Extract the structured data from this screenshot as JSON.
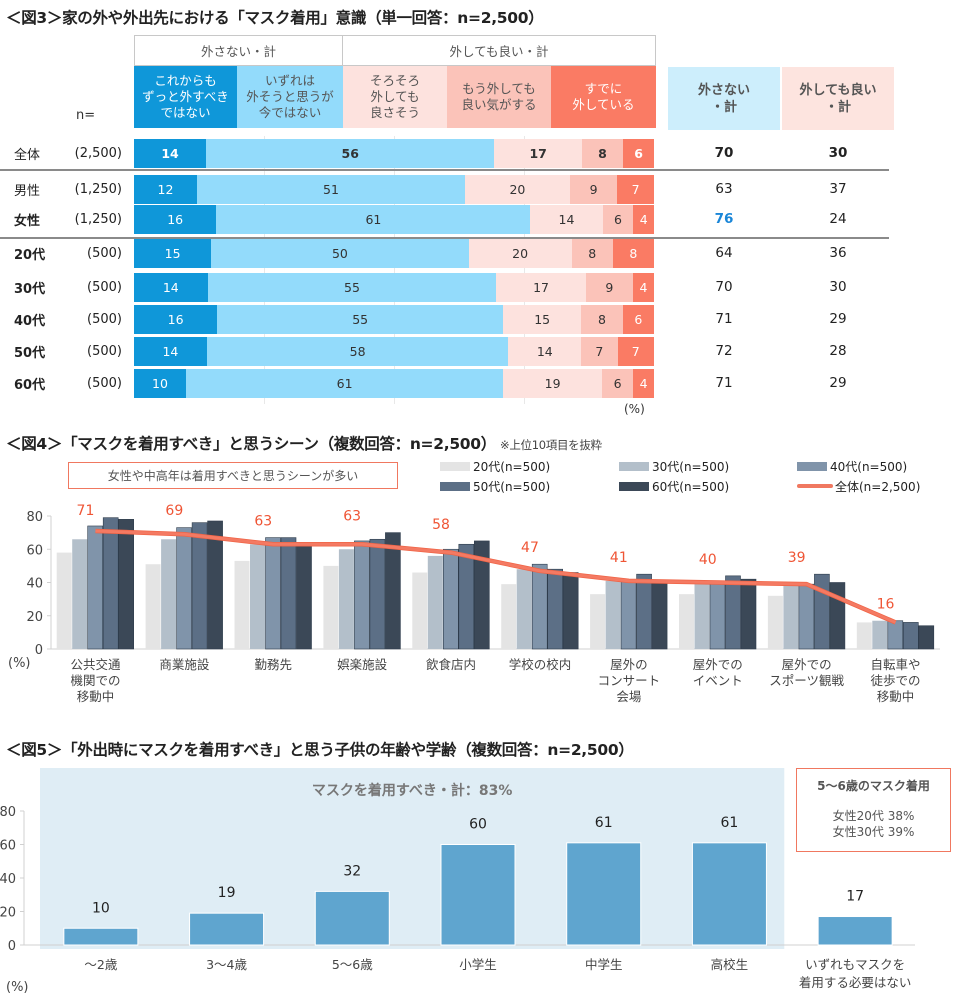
{
  "colors": {
    "dont_remove_always": "#0f97d9",
    "dont_remove_eventually": "#93dbfb",
    "ok_soon": "#fde2de",
    "ok_feel": "#fbc3b9",
    "already": "#fa7b64",
    "highlight_blue": "#1a86d8",
    "accent_red": "#ef5535",
    "age20": "#e4e4e4",
    "age30": "#b3bfca",
    "age40": "#8094aa",
    "age50": "#5c6f86",
    "age60": "#3b4857",
    "overall_line": "#f47a63",
    "fig5_bar": "#5fa5cf",
    "fig5_band": "#dfedf5"
  },
  "fig3": {
    "title": "＜図3＞家の外や外出先における「マスク着用」意識（単一回答：n=2,500）",
    "group_headers": [
      "外さない・計",
      "外しても良い・計"
    ],
    "category_headers": [
      "これからも\nずっと外すべき\nではない",
      "いずれは\n外そうと思うが\n今ではない",
      "そろそろ\n外しても\n良さそう",
      "もう外しても\n良い気がする",
      "すでに\n外している"
    ],
    "n_label": "n=",
    "summary_headers": [
      "外さない\n・計",
      "外しても良い\n・計"
    ],
    "unit": "(%)"
  },
  "chart_data": [
    {
      "type": "bar",
      "stacked": true,
      "orientation": "horizontal",
      "title": "＜図3＞家の外や外出先における「マスク着用」意識（単一回答：n=2,500）",
      "series": [
        {
          "name": "これからもずっと外すべきではない",
          "values": [
            14,
            12,
            16,
            15,
            14,
            16,
            14,
            10
          ]
        },
        {
          "name": "いずれは外そうと思うが今ではない",
          "values": [
            56,
            51,
            61,
            50,
            55,
            55,
            58,
            61
          ]
        },
        {
          "name": "そろそろ外しても良さそう",
          "values": [
            17,
            20,
            14,
            20,
            17,
            15,
            14,
            19
          ]
        },
        {
          "name": "もう外しても良い気がする",
          "values": [
            8,
            9,
            6,
            8,
            9,
            8,
            7,
            6
          ]
        },
        {
          "name": "すでに外している",
          "values": [
            6,
            7,
            4,
            8,
            4,
            6,
            7,
            4
          ]
        }
      ],
      "categories": [
        "全体",
        "男性",
        "女性",
        "20代",
        "30代",
        "40代",
        "50代",
        "60代"
      ],
      "n": [
        "(2,500)",
        "(1,250)",
        "(1,250)",
        "(500)",
        "(500)",
        "(500)",
        "(500)",
        "(500)"
      ],
      "summary": {
        "外さない・計": [
          70,
          63,
          76,
          64,
          70,
          71,
          72,
          71
        ],
        "外しても良い・計": [
          30,
          37,
          24,
          36,
          30,
          29,
          28,
          29
        ]
      },
      "highlight": {
        "row": "女性",
        "column": "外さない・計",
        "value": 76
      },
      "unit": "(%)",
      "xlim": [
        0,
        100
      ]
    },
    {
      "type": "bar",
      "title": "＜図4＞「マスクを着用すべき」と思うシーン（複数回答：n=2,500）",
      "note": "※上位10項目を抜粋",
      "callout": "女性や中高年は着用すべきと思うシーンが多い",
      "categories": [
        "公共交通\n機関での\n移動中",
        "商業施設",
        "勤務先",
        "娯楽施設",
        "飲食店内",
        "学校の校内",
        "屋外の\nコンサート\n会場",
        "屋外での\nイベント",
        "屋外での\nスポーツ観戦",
        "自転車や\n徒歩での\n移動中"
      ],
      "series": [
        {
          "name": "20代(n=500)",
          "type": "bar",
          "values": [
            58,
            51,
            53,
            50,
            46,
            39,
            33,
            33,
            32,
            16
          ]
        },
        {
          "name": "30代(n=500)",
          "type": "bar",
          "values": [
            66,
            66,
            63,
            60,
            56,
            48,
            41,
            40,
            39,
            17
          ]
        },
        {
          "name": "40代(n=500)",
          "type": "bar",
          "values": [
            74,
            73,
            67,
            65,
            60,
            51,
            41,
            39,
            39,
            17
          ]
        },
        {
          "name": "50代(n=500)",
          "type": "bar",
          "values": [
            79,
            76,
            67,
            66,
            63,
            48,
            45,
            44,
            45,
            16
          ]
        },
        {
          "name": "60代(n=500)",
          "type": "bar",
          "values": [
            78,
            77,
            62,
            70,
            65,
            46,
            40,
            42,
            40,
            14
          ]
        },
        {
          "name": "全体(n=2,500)",
          "type": "line",
          "values": [
            71,
            69,
            63,
            63,
            58,
            47,
            41,
            40,
            39,
            16
          ]
        }
      ],
      "ylabel": "(%)",
      "yticks": [
        0,
        20,
        40,
        60,
        80
      ],
      "ylim": [
        0,
        80
      ],
      "legend": "top-right",
      "grid": false
    },
    {
      "type": "bar",
      "title": "＜図5＞「外出時にマスクを着用すべき」と思う子供の年齢や学齢（複数回答：n=2,500）",
      "categories": [
        "～2歳",
        "3～4歳",
        "5～6歳",
        "小学生",
        "中学生",
        "高校生",
        "いずれもマスクを\n着用する必要はない"
      ],
      "values": [
        10,
        19,
        32,
        60,
        61,
        61,
        17
      ],
      "band_label": "マスクを着用すべき・計：83%",
      "band_categories": [
        "～2歳",
        "3～4歳",
        "5～6歳",
        "小学生",
        "中学生",
        "高校生"
      ],
      "ylabel": "(%)",
      "yticks": [
        0,
        20,
        40,
        60,
        80
      ],
      "ylim": [
        0,
        80
      ],
      "note_box": {
        "title": "5～6歳のマスク着用",
        "lines": [
          "女性20代 38%",
          "女性30代 39%"
        ]
      }
    }
  ]
}
